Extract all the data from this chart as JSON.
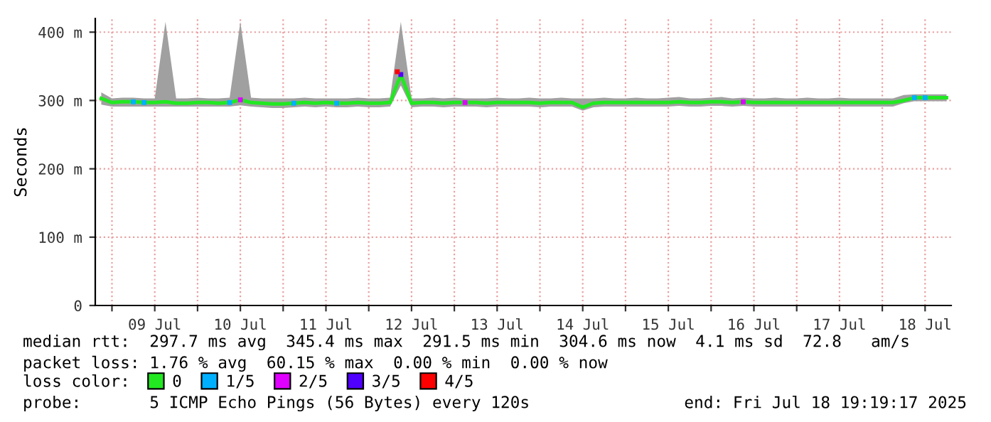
{
  "chart_data": {
    "type": "line",
    "ylabel": "Seconds",
    "xlim": [
      "2025-07-08T19:19",
      "2025-07-18T19:19"
    ],
    "xticks": [
      {
        "value": "2025-07-09T00:00",
        "label": null
      },
      {
        "value": "2025-07-09T12:00",
        "label": "09 Jul"
      },
      {
        "value": "2025-07-10T00:00",
        "label": null
      },
      {
        "value": "2025-07-10T12:00",
        "label": "10 Jul"
      },
      {
        "value": "2025-07-11T00:00",
        "label": null
      },
      {
        "value": "2025-07-11T12:00",
        "label": "11 Jul"
      },
      {
        "value": "2025-07-12T00:00",
        "label": null
      },
      {
        "value": "2025-07-12T12:00",
        "label": "12 Jul"
      },
      {
        "value": "2025-07-13T00:00",
        "label": null
      },
      {
        "value": "2025-07-13T12:00",
        "label": "13 Jul"
      },
      {
        "value": "2025-07-14T00:00",
        "label": null
      },
      {
        "value": "2025-07-14T12:00",
        "label": "14 Jul"
      },
      {
        "value": "2025-07-15T00:00",
        "label": null
      },
      {
        "value": "2025-07-15T12:00",
        "label": "15 Jul"
      },
      {
        "value": "2025-07-16T00:00",
        "label": null
      },
      {
        "value": "2025-07-16T12:00",
        "label": "16 Jul"
      },
      {
        "value": "2025-07-17T00:00",
        "label": null
      },
      {
        "value": "2025-07-17T12:00",
        "label": "17 Jul"
      },
      {
        "value": "2025-07-18T00:00",
        "label": null
      },
      {
        "value": "2025-07-18T12:00",
        "label": "18 Jul"
      }
    ],
    "ylim": [
      0,
      420
    ],
    "yticks": [
      0,
      {
        "value": 100,
        "label": "100 m"
      },
      {
        "value": 200,
        "label": "200 m"
      },
      {
        "value": 300,
        "label": "300 m"
      },
      {
        "value": 400,
        "label": "400 m"
      }
    ],
    "grid": true,
    "legend": "bottom",
    "annotations": [
      "median rtt:  297.7 ms avg  345.4 ms max  291.5 ms min  304.6 ms now  4.1 ms sd  72.8   am/s",
      "packet loss: 1.76 % avg  60.15 % max  0.00 % min  0.00 % now",
      "loss color:",
      "probe:       5 ICMP Echo Pings (56 Bytes) every 120s",
      "end: Fri Jul 18 19:19:17 2025"
    ],
    "series": [
      {
        "name": "0",
        "color": "#22e822",
        "x": [
          "2025-07-08T21:00",
          "2025-07-09T00:00",
          "2025-07-09T03:00",
          "2025-07-09T06:00",
          "2025-07-09T09:00",
          "2025-07-09T12:00",
          "2025-07-09T15:00",
          "2025-07-09T18:00",
          "2025-07-09T21:00",
          "2025-07-10T00:00",
          "2025-07-10T03:00",
          "2025-07-10T06:00",
          "2025-07-10T09:00",
          "2025-07-10T12:00",
          "2025-07-10T15:00",
          "2025-07-10T18:00",
          "2025-07-10T21:00",
          "2025-07-11T00:00",
          "2025-07-11T03:00",
          "2025-07-11T06:00",
          "2025-07-11T09:00",
          "2025-07-11T12:00",
          "2025-07-11T15:00",
          "2025-07-11T18:00",
          "2025-07-11T21:00",
          "2025-07-12T00:00",
          "2025-07-12T03:00",
          "2025-07-12T06:00",
          "2025-07-12T09:00",
          "2025-07-12T12:00",
          "2025-07-12T15:00",
          "2025-07-12T18:00",
          "2025-07-12T21:00",
          "2025-07-13T00:00",
          "2025-07-13T03:00",
          "2025-07-13T06:00",
          "2025-07-13T09:00",
          "2025-07-13T12:00",
          "2025-07-13T15:00",
          "2025-07-13T18:00",
          "2025-07-13T21:00",
          "2025-07-14T00:00",
          "2025-07-14T03:00",
          "2025-07-14T06:00",
          "2025-07-14T09:00",
          "2025-07-14T12:00",
          "2025-07-14T15:00",
          "2025-07-14T18:00",
          "2025-07-14T21:00",
          "2025-07-15T00:00",
          "2025-07-15T03:00",
          "2025-07-15T06:00",
          "2025-07-15T09:00",
          "2025-07-15T12:00",
          "2025-07-15T15:00",
          "2025-07-15T18:00",
          "2025-07-15T21:00",
          "2025-07-16T00:00",
          "2025-07-16T03:00",
          "2025-07-16T06:00",
          "2025-07-16T09:00",
          "2025-07-16T12:00",
          "2025-07-16T15:00",
          "2025-07-16T18:00",
          "2025-07-16T21:00",
          "2025-07-17T00:00",
          "2025-07-17T03:00",
          "2025-07-17T06:00",
          "2025-07-17T09:00",
          "2025-07-17T12:00",
          "2025-07-17T15:00",
          "2025-07-17T18:00",
          "2025-07-17T21:00",
          "2025-07-18T00:00",
          "2025-07-18T03:00",
          "2025-07-18T06:00",
          "2025-07-18T09:00",
          "2025-07-18T12:00",
          "2025-07-18T15:00",
          "2025-07-18T18:00"
        ],
        "values": [
          303,
          297,
          298,
          298,
          297,
          297,
          298,
          296,
          296,
          297,
          297,
          296,
          297,
          301,
          297,
          296,
          295,
          295,
          296,
          297,
          296,
          297,
          296,
          296,
          297,
          296,
          296,
          297,
          338,
          296,
          297,
          297,
          296,
          297,
          297,
          297,
          296,
          297,
          297,
          297,
          297,
          296,
          297,
          297,
          297,
          290,
          296,
          297,
          297,
          297,
          297,
          297,
          297,
          297,
          298,
          297,
          297,
          298,
          298,
          297,
          298,
          297,
          297,
          297,
          297,
          297,
          297,
          297,
          297,
          297,
          297,
          297,
          297,
          297,
          297,
          300,
          304,
          304,
          304,
          304
        ],
        "lower": [
          294,
          291,
          291,
          291,
          291,
          291,
          291,
          291,
          291,
          291,
          291,
          291,
          291,
          293,
          291,
          290,
          289,
          289,
          290,
          291,
          290,
          291,
          290,
          290,
          291,
          290,
          290,
          291,
          322,
          290,
          291,
          291,
          290,
          291,
          291,
          291,
          290,
          291,
          291,
          291,
          291,
          290,
          291,
          291,
          291,
          285,
          290,
          291,
          291,
          291,
          291,
          291,
          291,
          291,
          292,
          291,
          291,
          292,
          292,
          291,
          292,
          291,
          291,
          291,
          291,
          291,
          291,
          291,
          291,
          291,
          291,
          291,
          291,
          291,
          291,
          296,
          299,
          299,
          299,
          299
        ],
        "upper": [
          312,
          303,
          304,
          304,
          303,
          303,
          415,
          303,
          303,
          304,
          303,
          303,
          304,
          415,
          304,
          303,
          303,
          303,
          303,
          304,
          303,
          303,
          303,
          303,
          304,
          303,
          303,
          304,
          415,
          303,
          303,
          304,
          303,
          304,
          303,
          303,
          303,
          304,
          303,
          303,
          304,
          303,
          303,
          304,
          303,
          303,
          303,
          304,
          303,
          303,
          304,
          303,
          303,
          304,
          305,
          303,
          303,
          304,
          305,
          303,
          304,
          303,
          303,
          304,
          303,
          303,
          304,
          303,
          303,
          304,
          303,
          303,
          303,
          303,
          303,
          308,
          309,
          309,
          309,
          309
        ]
      },
      {
        "name": "1/5",
        "type": "scatter",
        "color": "#00b0ff",
        "x": [
          "2025-07-09T06:00",
          "2025-07-09T09:00",
          "2025-07-10T09:00",
          "2025-07-11T03:00",
          "2025-07-11T15:00",
          "2025-07-18T09:00",
          "2025-07-18T12:00"
        ],
        "values": [
          298,
          297,
          297,
          296,
          296,
          304,
          304
        ]
      },
      {
        "name": "2/5",
        "type": "scatter",
        "color": "#e000ff",
        "x": [
          "2025-07-10T12:00",
          "2025-07-13T03:00",
          "2025-07-16T09:00"
        ],
        "values": [
          301,
          297,
          298
        ]
      },
      {
        "name": "3/5",
        "type": "scatter",
        "color": "#5000ff",
        "x": [
          "2025-07-12T09:00"
        ],
        "values": [
          338
        ]
      },
      {
        "name": "4/5",
        "type": "scatter",
        "color": "#ff0000",
        "x": [
          "2025-07-12T08:00"
        ],
        "values": [
          342
        ]
      }
    ]
  }
}
